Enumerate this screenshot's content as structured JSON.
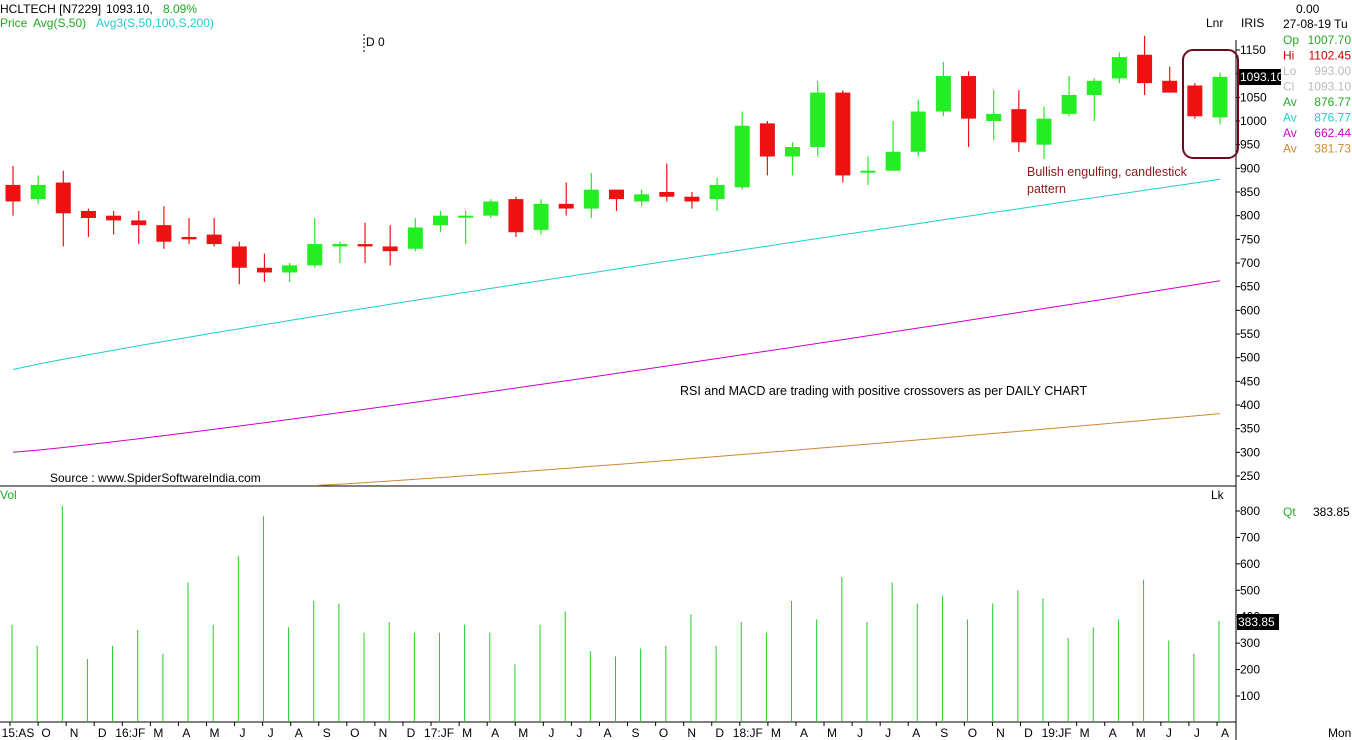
{
  "header": {
    "symbol": "HCLTECH [N7229]",
    "last": "1093.10,",
    "change": "8.09%",
    "price_label": "Price",
    "avg_label": "Avg(S,50)",
    "avg3_label": "Avg3(S,50,100,S,200)",
    "cursor_label": "D 0",
    "scale_label": "Lnr",
    "brand": "IRIS"
  },
  "info_panel": {
    "top_value": "0.00",
    "date": "27-08-19 Tu",
    "rows": [
      {
        "label": "Op",
        "value": "1007.70",
        "color": "#22aa22"
      },
      {
        "label": "Hi",
        "value": "1102.45",
        "color": "#cc0000"
      },
      {
        "label": "Lo",
        "value": "993.00",
        "color": "#bbbbbb"
      },
      {
        "label": "Cl",
        "value": "1093.10",
        "color": "#bbbbbb"
      },
      {
        "label": "Av",
        "value": "876.77",
        "color": "#22aa22"
      },
      {
        "label": "Av",
        "value": "876.77",
        "color": "#22cccc"
      },
      {
        "label": "Av",
        "value": "662.44",
        "color": "#cc00cc"
      },
      {
        "label": "Av",
        "value": "381.73",
        "color": "#cc8833"
      }
    ]
  },
  "annotations": {
    "pattern_line1": "Bullish engulfing, candlestick",
    "pattern_line2": "pattern",
    "note": "RSI and MACD are trading with positive crossovers as per DAILY CHART",
    "source": "Source : www.SpiderSoftwareIndia.com"
  },
  "volume_panel": {
    "label": "Vol",
    "unit": "Lk",
    "qt_label": "Qt",
    "qt_value": "383.85",
    "last_marker": "383.85"
  },
  "last_price_marker": "1093.10",
  "footer": {
    "right_label": "Mon"
  },
  "chart_data": {
    "type": "candlestick",
    "interval": "monthly",
    "price_axis": {
      "ticks": [
        250,
        300,
        350,
        400,
        450,
        500,
        550,
        600,
        650,
        700,
        750,
        800,
        850,
        900,
        950,
        1000,
        1050,
        1100,
        1150
      ],
      "ylim": [
        230,
        1175
      ]
    },
    "volume_axis": {
      "ticks": [
        100,
        200,
        300,
        400,
        500,
        600,
        700,
        800
      ],
      "ylim": [
        0,
        840
      ]
    },
    "x_tick_labels": [
      "15:AS",
      "O",
      "N",
      "D",
      "16:JF",
      "M",
      "A",
      "M",
      "J",
      "J",
      "A",
      "S",
      "O",
      "N",
      "D",
      "17:JF",
      "M",
      "A",
      "M",
      "J",
      "J",
      "A",
      "S",
      "O",
      "N",
      "D",
      "18:JF",
      "M",
      "A",
      "M",
      "J",
      "J",
      "A",
      "S",
      "O",
      "N",
      "D",
      "19:JF",
      "M",
      "A",
      "M",
      "J",
      "J",
      "A"
    ],
    "candles": [
      {
        "o": 865,
        "h": 905,
        "l": 800,
        "c": 830
      },
      {
        "o": 835,
        "h": 885,
        "l": 825,
        "c": 865
      },
      {
        "o": 870,
        "h": 895,
        "l": 735,
        "c": 805
      },
      {
        "o": 810,
        "h": 815,
        "l": 755,
        "c": 795
      },
      {
        "o": 800,
        "h": 810,
        "l": 760,
        "c": 790
      },
      {
        "o": 790,
        "h": 810,
        "l": 740,
        "c": 780
      },
      {
        "o": 780,
        "h": 820,
        "l": 730,
        "c": 745
      },
      {
        "o": 755,
        "h": 795,
        "l": 740,
        "c": 750
      },
      {
        "o": 760,
        "h": 795,
        "l": 735,
        "c": 740
      },
      {
        "o": 735,
        "h": 745,
        "l": 655,
        "c": 690
      },
      {
        "o": 690,
        "h": 720,
        "l": 660,
        "c": 680
      },
      {
        "o": 680,
        "h": 700,
        "l": 660,
        "c": 695
      },
      {
        "o": 695,
        "h": 795,
        "l": 690,
        "c": 740
      },
      {
        "o": 735,
        "h": 745,
        "l": 700,
        "c": 740
      },
      {
        "o": 740,
        "h": 785,
        "l": 700,
        "c": 735
      },
      {
        "o": 735,
        "h": 780,
        "l": 695,
        "c": 725
      },
      {
        "o": 730,
        "h": 795,
        "l": 725,
        "c": 775
      },
      {
        "o": 780,
        "h": 810,
        "l": 765,
        "c": 800
      },
      {
        "o": 800,
        "h": 810,
        "l": 740,
        "c": 800
      },
      {
        "o": 800,
        "h": 835,
        "l": 795,
        "c": 830
      },
      {
        "o": 835,
        "h": 840,
        "l": 755,
        "c": 765
      },
      {
        "o": 770,
        "h": 835,
        "l": 760,
        "c": 825
      },
      {
        "o": 825,
        "h": 870,
        "l": 800,
        "c": 815
      },
      {
        "o": 815,
        "h": 890,
        "l": 795,
        "c": 855
      },
      {
        "o": 855,
        "h": 855,
        "l": 810,
        "c": 835
      },
      {
        "o": 830,
        "h": 855,
        "l": 820,
        "c": 845
      },
      {
        "o": 850,
        "h": 910,
        "l": 830,
        "c": 840
      },
      {
        "o": 840,
        "h": 850,
        "l": 815,
        "c": 830
      },
      {
        "o": 835,
        "h": 880,
        "l": 810,
        "c": 865
      },
      {
        "o": 860,
        "h": 1020,
        "l": 855,
        "c": 990
      },
      {
        "o": 995,
        "h": 1000,
        "l": 885,
        "c": 925
      },
      {
        "o": 925,
        "h": 955,
        "l": 885,
        "c": 945
      },
      {
        "o": 945,
        "h": 1085,
        "l": 925,
        "c": 1060
      },
      {
        "o": 1060,
        "h": 1065,
        "l": 870,
        "c": 885
      },
      {
        "o": 895,
        "h": 925,
        "l": 865,
        "c": 895
      },
      {
        "o": 895,
        "h": 1000,
        "l": 895,
        "c": 935
      },
      {
        "o": 935,
        "h": 1045,
        "l": 925,
        "c": 1020
      },
      {
        "o": 1020,
        "h": 1125,
        "l": 1010,
        "c": 1095
      },
      {
        "o": 1095,
        "h": 1105,
        "l": 945,
        "c": 1005
      },
      {
        "o": 1000,
        "h": 1065,
        "l": 960,
        "c": 1015
      },
      {
        "o": 1025,
        "h": 1065,
        "l": 935,
        "c": 955
      },
      {
        "o": 950,
        "h": 1030,
        "l": 920,
        "c": 1005
      },
      {
        "o": 1015,
        "h": 1095,
        "l": 1010,
        "c": 1055
      },
      {
        "o": 1055,
        "h": 1090,
        "l": 1000,
        "c": 1085
      },
      {
        "o": 1090,
        "h": 1145,
        "l": 1080,
        "c": 1135
      },
      {
        "o": 1140,
        "h": 1180,
        "l": 1055,
        "c": 1080
      },
      {
        "o": 1085,
        "h": 1115,
        "l": 1060,
        "c": 1060
      },
      {
        "o": 1075,
        "h": 1080,
        "l": 1005,
        "c": 1010
      },
      {
        "o": 1007.7,
        "h": 1102.45,
        "l": 993,
        "c": 1093.1
      }
    ],
    "volume": [
      370,
      290,
      820,
      240,
      290,
      350,
      260,
      530,
      370,
      630,
      780,
      360,
      460,
      450,
      340,
      380,
      340,
      340,
      370,
      340,
      220,
      370,
      420,
      270,
      250,
      280,
      290,
      410,
      290,
      380,
      340,
      460,
      390,
      550,
      380,
      530,
      450,
      480,
      390,
      450,
      500,
      470,
      320,
      360,
      390,
      540,
      310,
      260,
      383.85
    ],
    "moving_averages": [
      {
        "name": "Avg(S,50)",
        "color": "#22cccc",
        "start": 475,
        "end": 876.77
      },
      {
        "name": "Avg(S,100)",
        "color": "#cc00cc",
        "start": 300,
        "end": 662.44
      },
      {
        "name": "Avg(S,200)",
        "color": "#cc8833",
        "start": 230,
        "end": 381.73
      }
    ]
  }
}
